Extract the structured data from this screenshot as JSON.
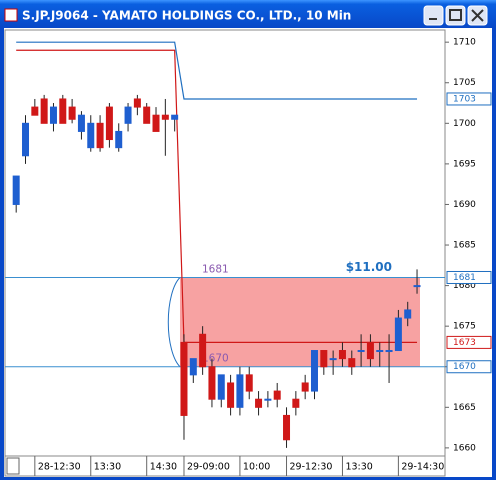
{
  "chart_data": {
    "type": "candlestick",
    "window_title": "S.JP.J9064 - YAMATO HOLDINGS CO., LTD., 10 Min",
    "ylim": [
      1659,
      1711.5
    ],
    "yticks": [
      1660,
      1665,
      1670,
      1675,
      1680,
      1685,
      1690,
      1695,
      1700,
      1705,
      1710
    ],
    "xlim": [
      -1.2,
      46
    ],
    "xticks": [
      {
        "value": 2,
        "label": "28-12:30"
      },
      {
        "value": 8,
        "label": "13:30"
      },
      {
        "value": 14,
        "label": "14:30"
      },
      {
        "value": 18,
        "label": "29-09:00"
      },
      {
        "value": 24,
        "label": "10:00"
      },
      {
        "value": 29,
        "label": "29-12:30"
      },
      {
        "value": 35,
        "label": "13:30"
      },
      {
        "value": 41,
        "label": "29-14:30"
      }
    ],
    "up_color": "#1f5fd0",
    "down_color": "#d01818",
    "open": [
      1690,
      1696,
      1702,
      1703,
      1700,
      1703,
      1702,
      1699,
      1697,
      1700,
      1702,
      1697,
      1700,
      1703,
      1702,
      1701,
      1701,
      1700.5,
      1673,
      1669,
      1674,
      1670,
      1666,
      1668,
      1665,
      1669,
      1666,
      1666,
      1667,
      1664,
      1666,
      1668,
      1667,
      1672,
      1671,
      1672,
      1671,
      1672,
      1673,
      1672,
      1672,
      1672,
      1676,
      1680
    ],
    "high": [
      1693.5,
      1701,
      1703,
      1703.5,
      1702.5,
      1703.5,
      1703,
      1701.5,
      1701,
      1701,
      1702.5,
      1700,
      1702.5,
      1703.5,
      1702.5,
      1702,
      1703,
      1701,
      1674,
      1671,
      1675,
      1671,
      1669,
      1669,
      1670,
      1670,
      1667,
      1667,
      1668,
      1665,
      1667,
      1669,
      1672,
      1672,
      1672,
      1673,
      1672,
      1674,
      1674,
      1673,
      1674,
      1677,
      1678,
      1682
    ],
    "low": [
      1689,
      1695,
      1701,
      1700,
      1699,
      1700,
      1700,
      1698,
      1696.5,
      1696.5,
      1697,
      1696.5,
      1699,
      1701,
      1700,
      1699,
      1696,
      1699,
      1661,
      1668,
      1669,
      1665,
      1665,
      1664,
      1664,
      1666,
      1664,
      1665,
      1665,
      1660,
      1664,
      1666,
      1666,
      1669,
      1669,
      1670,
      1669,
      1670,
      1670,
      1670,
      1668,
      1672,
      1675,
      1679
    ],
    "close": [
      1693.5,
      1700,
      1701,
      1700,
      1702,
      1700,
      1700.5,
      1701,
      1700,
      1697,
      1698,
      1699,
      1702,
      1702,
      1700,
      1699,
      1700.5,
      1701,
      1664,
      1671,
      1670,
      1666,
      1669,
      1665,
      1669,
      1667,
      1665,
      1666,
      1666,
      1661,
      1665,
      1667,
      1672,
      1670,
      1671,
      1671,
      1670,
      1672,
      1671,
      1672,
      1672,
      1676,
      1677,
      1680
    ],
    "lines": [
      {
        "color": "#d01818",
        "values": [
          1709,
          1709,
          1709,
          1709,
          1709,
          1709,
          1709,
          1709,
          1709,
          1709,
          1709,
          1709,
          1709,
          1709,
          1709,
          1709,
          1709,
          1709,
          1673,
          1673,
          1673,
          1673,
          1673,
          1673,
          1673,
          1673,
          1673,
          1673,
          1673,
          1673,
          1673,
          1673,
          1673,
          1673,
          1673,
          1673,
          1673,
          1673,
          1673,
          1673,
          1673,
          1673,
          1673,
          1673
        ]
      },
      {
        "color": "#1f6fc0",
        "values": [
          1710,
          1710,
          1710,
          1710,
          1710,
          1710,
          1710,
          1710,
          1710,
          1710,
          1710,
          1710,
          1710,
          1710,
          1710,
          1710,
          1710,
          1710,
          1703,
          1703,
          1703,
          1703,
          1703,
          1703,
          1703,
          1703,
          1703,
          1703,
          1703,
          1703,
          1703,
          1703,
          1703,
          1703,
          1703,
          1703,
          1703,
          1703,
          1703,
          1703,
          1703,
          1703,
          1703,
          1703
        ]
      }
    ],
    "horizontal_lines": [
      {
        "value": 1681,
        "label": "1681"
      },
      {
        "value": 1670,
        "label": "1670"
      }
    ],
    "zone": {
      "low": 1670,
      "high": 1681,
      "start": 18,
      "color": "#f58b8b"
    },
    "annotation": {
      "value": 1681,
      "label": "$11.00",
      "color": "#1f6fc0"
    },
    "price_markers": [
      {
        "value": 1703,
        "color": "#1f6fc0"
      },
      {
        "value": 1681,
        "color": "#1f6fc0"
      },
      {
        "value": 1673,
        "color": "#d01818"
      },
      {
        "value": 1670,
        "color": "#1f6fc0"
      }
    ]
  }
}
